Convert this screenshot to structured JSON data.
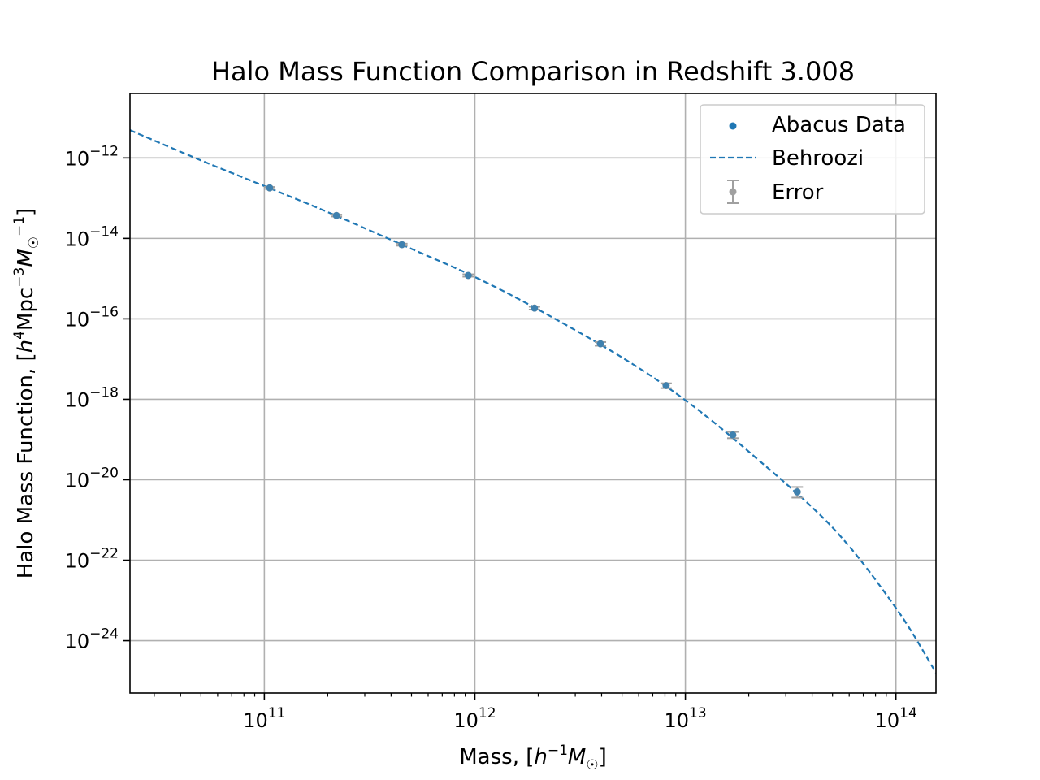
{
  "chart_data": {
    "type": "scatter",
    "title": "Halo Mass Function Comparison in Redshift 3.008",
    "xlabel": {
      "prefix": "Mass, [",
      "h": "h",
      "h_exp": "−1",
      "m": "M",
      "m_sub": "☉",
      "suffix": "]"
    },
    "ylabel": {
      "prefix": "Halo Mass Function, [",
      "h": "h",
      "h_exp": "4",
      "mpc": "Mpc",
      "mpc_exp": "−3",
      "m": "M",
      "m_sub": "☉",
      "m_exp": "−1",
      "suffix": "]"
    },
    "x_scale": "log",
    "y_scale": "log",
    "xlim": [
      23000000000.0,
      155000000000000.0
    ],
    "ylim": [
      5e-26,
      4e-11
    ],
    "x_ticks": [
      {
        "value": 100000000000.0,
        "base": "10",
        "exp": "11"
      },
      {
        "value": 1000000000000.0,
        "base": "10",
        "exp": "12"
      },
      {
        "value": 10000000000000.0,
        "base": "10",
        "exp": "13"
      },
      {
        "value": 100000000000000.0,
        "base": "10",
        "exp": "14"
      }
    ],
    "y_ticks": [
      {
        "value": 1e-12,
        "base": "10",
        "exp": "−12"
      },
      {
        "value": 1e-14,
        "base": "10",
        "exp": "−14"
      },
      {
        "value": 1e-16,
        "base": "10",
        "exp": "−16"
      },
      {
        "value": 1e-18,
        "base": "10",
        "exp": "−18"
      },
      {
        "value": 1e-20,
        "base": "10",
        "exp": "−20"
      },
      {
        "value": 1e-22,
        "base": "10",
        "exp": "−22"
      },
      {
        "value": 1e-24,
        "base": "10",
        "exp": "−24"
      }
    ],
    "grid": true,
    "legend_position": "top-right",
    "colors": {
      "data": "#1f77b4",
      "model": "#1f77b4",
      "error": "#a0a0a0"
    },
    "series": [
      {
        "name": "Abacus Data",
        "kind": "scatter",
        "x": [
          106000000000.0,
          220000000000.0,
          450000000000.0,
          930000000000.0,
          1920000000000.0,
          3950000000000.0,
          8100000000000.0,
          16800000000000.0,
          34000000000000.0
        ],
        "y": [
          1.8e-13,
          3.7e-14,
          7e-15,
          1.2e-15,
          1.85e-16,
          2.4e-17,
          2.2e-18,
          1.3e-19,
          5e-21
        ]
      },
      {
        "name": "Behroozi",
        "kind": "line",
        "x": [
          23000000000.0,
          50000000000.0,
          100000000000.0,
          200000000000.0,
          500000000000.0,
          1000000000000.0,
          2000000000000.0,
          5000000000000.0,
          10000000000000.0,
          20000000000000.0,
          50000000000000.0,
          100000000000000.0,
          155000000000000.0
        ],
        "y": [
          4.9e-12,
          8.7e-13,
          2e-13,
          4.5e-14,
          5.5e-15,
          1.1e-15,
          1.7e-16,
          1.1e-17,
          9.5e-19,
          5e-20,
          6.5e-22,
          6.5e-24,
          1.6e-25
        ]
      },
      {
        "name": "Error",
        "kind": "errorbar",
        "x": [
          106000000000.0,
          220000000000.0,
          450000000000.0,
          930000000000.0,
          1920000000000.0,
          3950000000000.0,
          8100000000000.0,
          16800000000000.0,
          34000000000000.0
        ],
        "y": [
          1.8e-13,
          3.7e-14,
          7e-15,
          1.2e-15,
          1.85e-16,
          2.4e-17,
          2.2e-18,
          1.3e-19,
          5e-21
        ],
        "y_low": [
          1.7e-13,
          3.5e-14,
          6.6e-15,
          1.12e-15,
          1.7e-16,
          2.15e-17,
          1.9e-18,
          1.08e-19,
          3.6e-21
        ],
        "y_high": [
          1.9e-13,
          3.9e-14,
          7.4e-15,
          1.28e-15,
          2e-16,
          2.65e-17,
          2.5e-18,
          1.55e-19,
          6.6e-21
        ]
      }
    ]
  }
}
